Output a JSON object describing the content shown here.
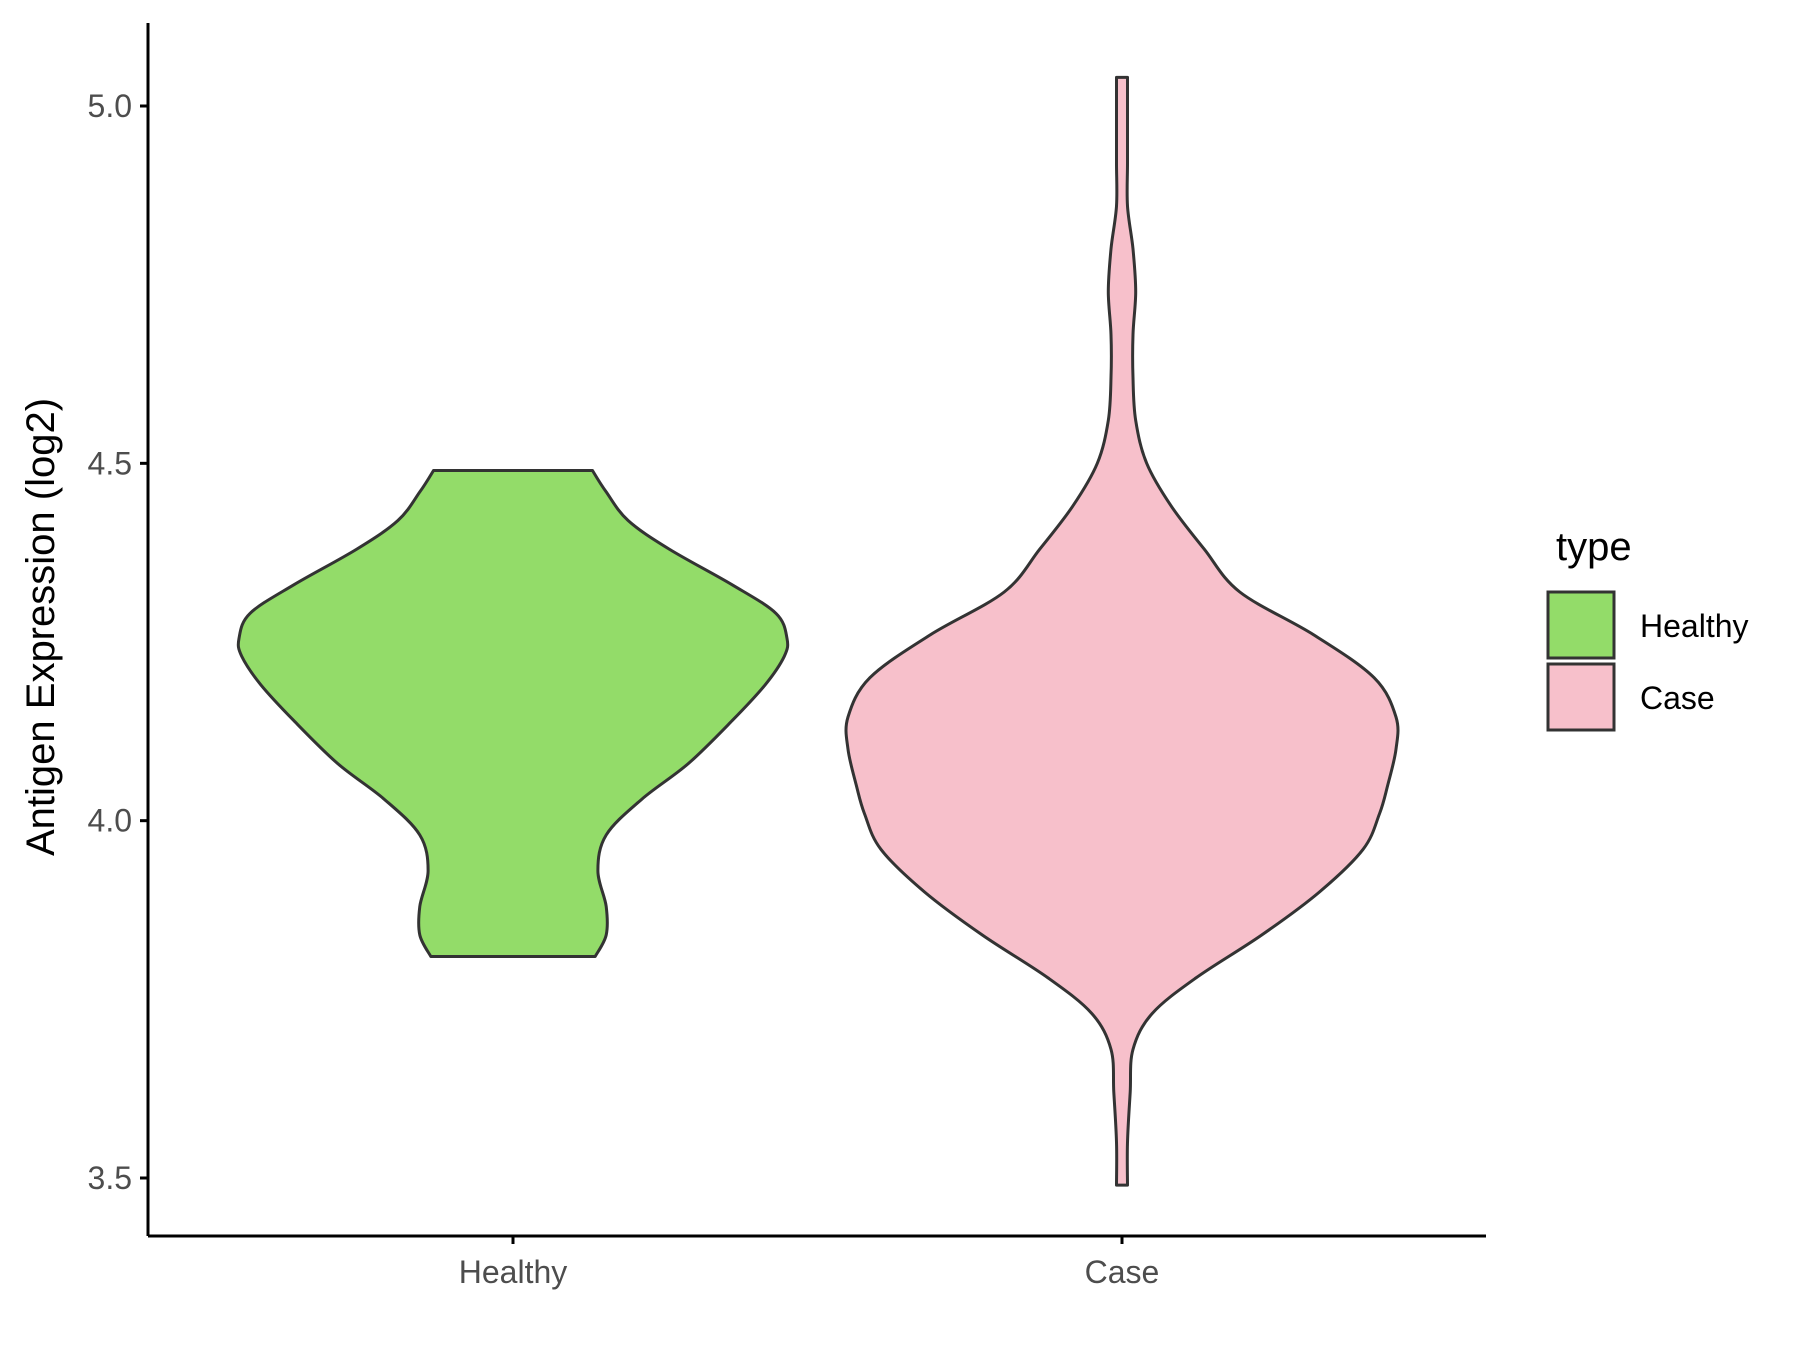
{
  "chart_data": {
    "type": "violin",
    "title": "",
    "xlabel": "",
    "ylabel": "Antigen Expression (log2)",
    "ylim": [
      3.43,
      5.12
    ],
    "yticks": [
      "3.5",
      "4.0",
      "4.5",
      "5.0"
    ],
    "categories": [
      "Healthy",
      "Case"
    ],
    "grid": false,
    "legend": {
      "title": "type",
      "position": "right",
      "entries": [
        {
          "label": "Healthy",
          "color": "#93dc69"
        },
        {
          "label": "Case",
          "color": "#f7c0cb"
        }
      ]
    },
    "series": [
      {
        "name": "Healthy",
        "color": "#93dc69",
        "min": 3.81,
        "max": 4.49,
        "density_profile": [
          {
            "y": 3.81,
            "w": 0.3
          },
          {
            "y": 3.84,
            "w": 0.34
          },
          {
            "y": 3.88,
            "w": 0.34
          },
          {
            "y": 3.93,
            "w": 0.31
          },
          {
            "y": 3.98,
            "w": 0.34
          },
          {
            "y": 4.03,
            "w": 0.47
          },
          {
            "y": 4.08,
            "w": 0.64
          },
          {
            "y": 4.14,
            "w": 0.8
          },
          {
            "y": 4.19,
            "w": 0.92
          },
          {
            "y": 4.23,
            "w": 0.99
          },
          {
            "y": 4.255,
            "w": 1.0
          },
          {
            "y": 4.29,
            "w": 0.96
          },
          {
            "y": 4.33,
            "w": 0.8
          },
          {
            "y": 4.38,
            "w": 0.57
          },
          {
            "y": 4.42,
            "w": 0.42
          },
          {
            "y": 4.46,
            "w": 0.34
          },
          {
            "y": 4.49,
            "w": 0.29
          }
        ]
      },
      {
        "name": "Case",
        "color": "#f7c0cb",
        "min": 3.49,
        "max": 5.04,
        "density_profile": [
          {
            "y": 3.49,
            "w": 0.02
          },
          {
            "y": 3.55,
            "w": 0.02
          },
          {
            "y": 3.62,
            "w": 0.03
          },
          {
            "y": 3.68,
            "w": 0.04
          },
          {
            "y": 3.73,
            "w": 0.11
          },
          {
            "y": 3.78,
            "w": 0.27
          },
          {
            "y": 3.84,
            "w": 0.51
          },
          {
            "y": 3.9,
            "w": 0.72
          },
          {
            "y": 3.96,
            "w": 0.88
          },
          {
            "y": 4.01,
            "w": 0.94
          },
          {
            "y": 4.05,
            "w": 0.97
          },
          {
            "y": 4.1,
            "w": 1.0
          },
          {
            "y": 4.145,
            "w": 1.0
          },
          {
            "y": 4.2,
            "w": 0.92
          },
          {
            "y": 4.26,
            "w": 0.7
          },
          {
            "y": 4.32,
            "w": 0.43
          },
          {
            "y": 4.38,
            "w": 0.3
          },
          {
            "y": 4.44,
            "w": 0.18
          },
          {
            "y": 4.5,
            "w": 0.09
          },
          {
            "y": 4.56,
            "w": 0.05
          },
          {
            "y": 4.62,
            "w": 0.04
          },
          {
            "y": 4.68,
            "w": 0.04
          },
          {
            "y": 4.74,
            "w": 0.05
          },
          {
            "y": 4.8,
            "w": 0.04
          },
          {
            "y": 4.86,
            "w": 0.02
          },
          {
            "y": 4.92,
            "w": 0.02
          },
          {
            "y": 4.98,
            "w": 0.02
          },
          {
            "y": 5.04,
            "w": 0.02
          }
        ]
      }
    ]
  }
}
